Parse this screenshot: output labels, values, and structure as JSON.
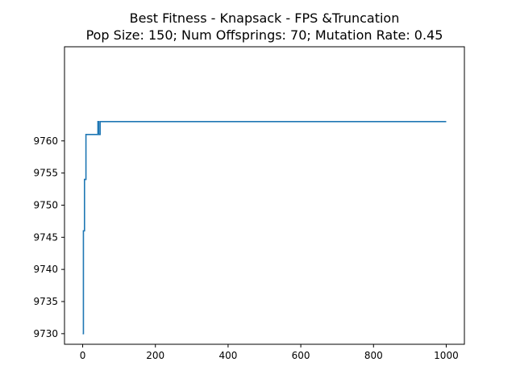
{
  "chart_data": {
    "type": "line",
    "title": "Best Fitness - Knapsack - FPS &Truncation",
    "subtitle": "Pop Size: 150; Num Offsprings: 70; Mutation Rate: 0.45",
    "xlabel": "",
    "ylabel": "",
    "xlim": [
      -50,
      1050
    ],
    "ylim": [
      9728.35,
      9774.65
    ],
    "xticks": [
      0,
      200,
      400,
      600,
      800,
      1000
    ],
    "yticks": [
      9730,
      9735,
      9740,
      9745,
      9750,
      9755,
      9760
    ],
    "grid": false,
    "legend": "none",
    "series": [
      {
        "color": "#1f77b4",
        "x": [
          0,
          2,
          2,
          5,
          5,
          9,
          9,
          14,
          14,
          42,
          42,
          44,
          44,
          48,
          48,
          1000
        ],
        "values": [
          9730,
          9730,
          9746,
          9746,
          9754,
          9754,
          9761,
          9761,
          9761,
          9761,
          9763,
          9763,
          9761,
          9761,
          9763,
          9763
        ]
      }
    ]
  }
}
